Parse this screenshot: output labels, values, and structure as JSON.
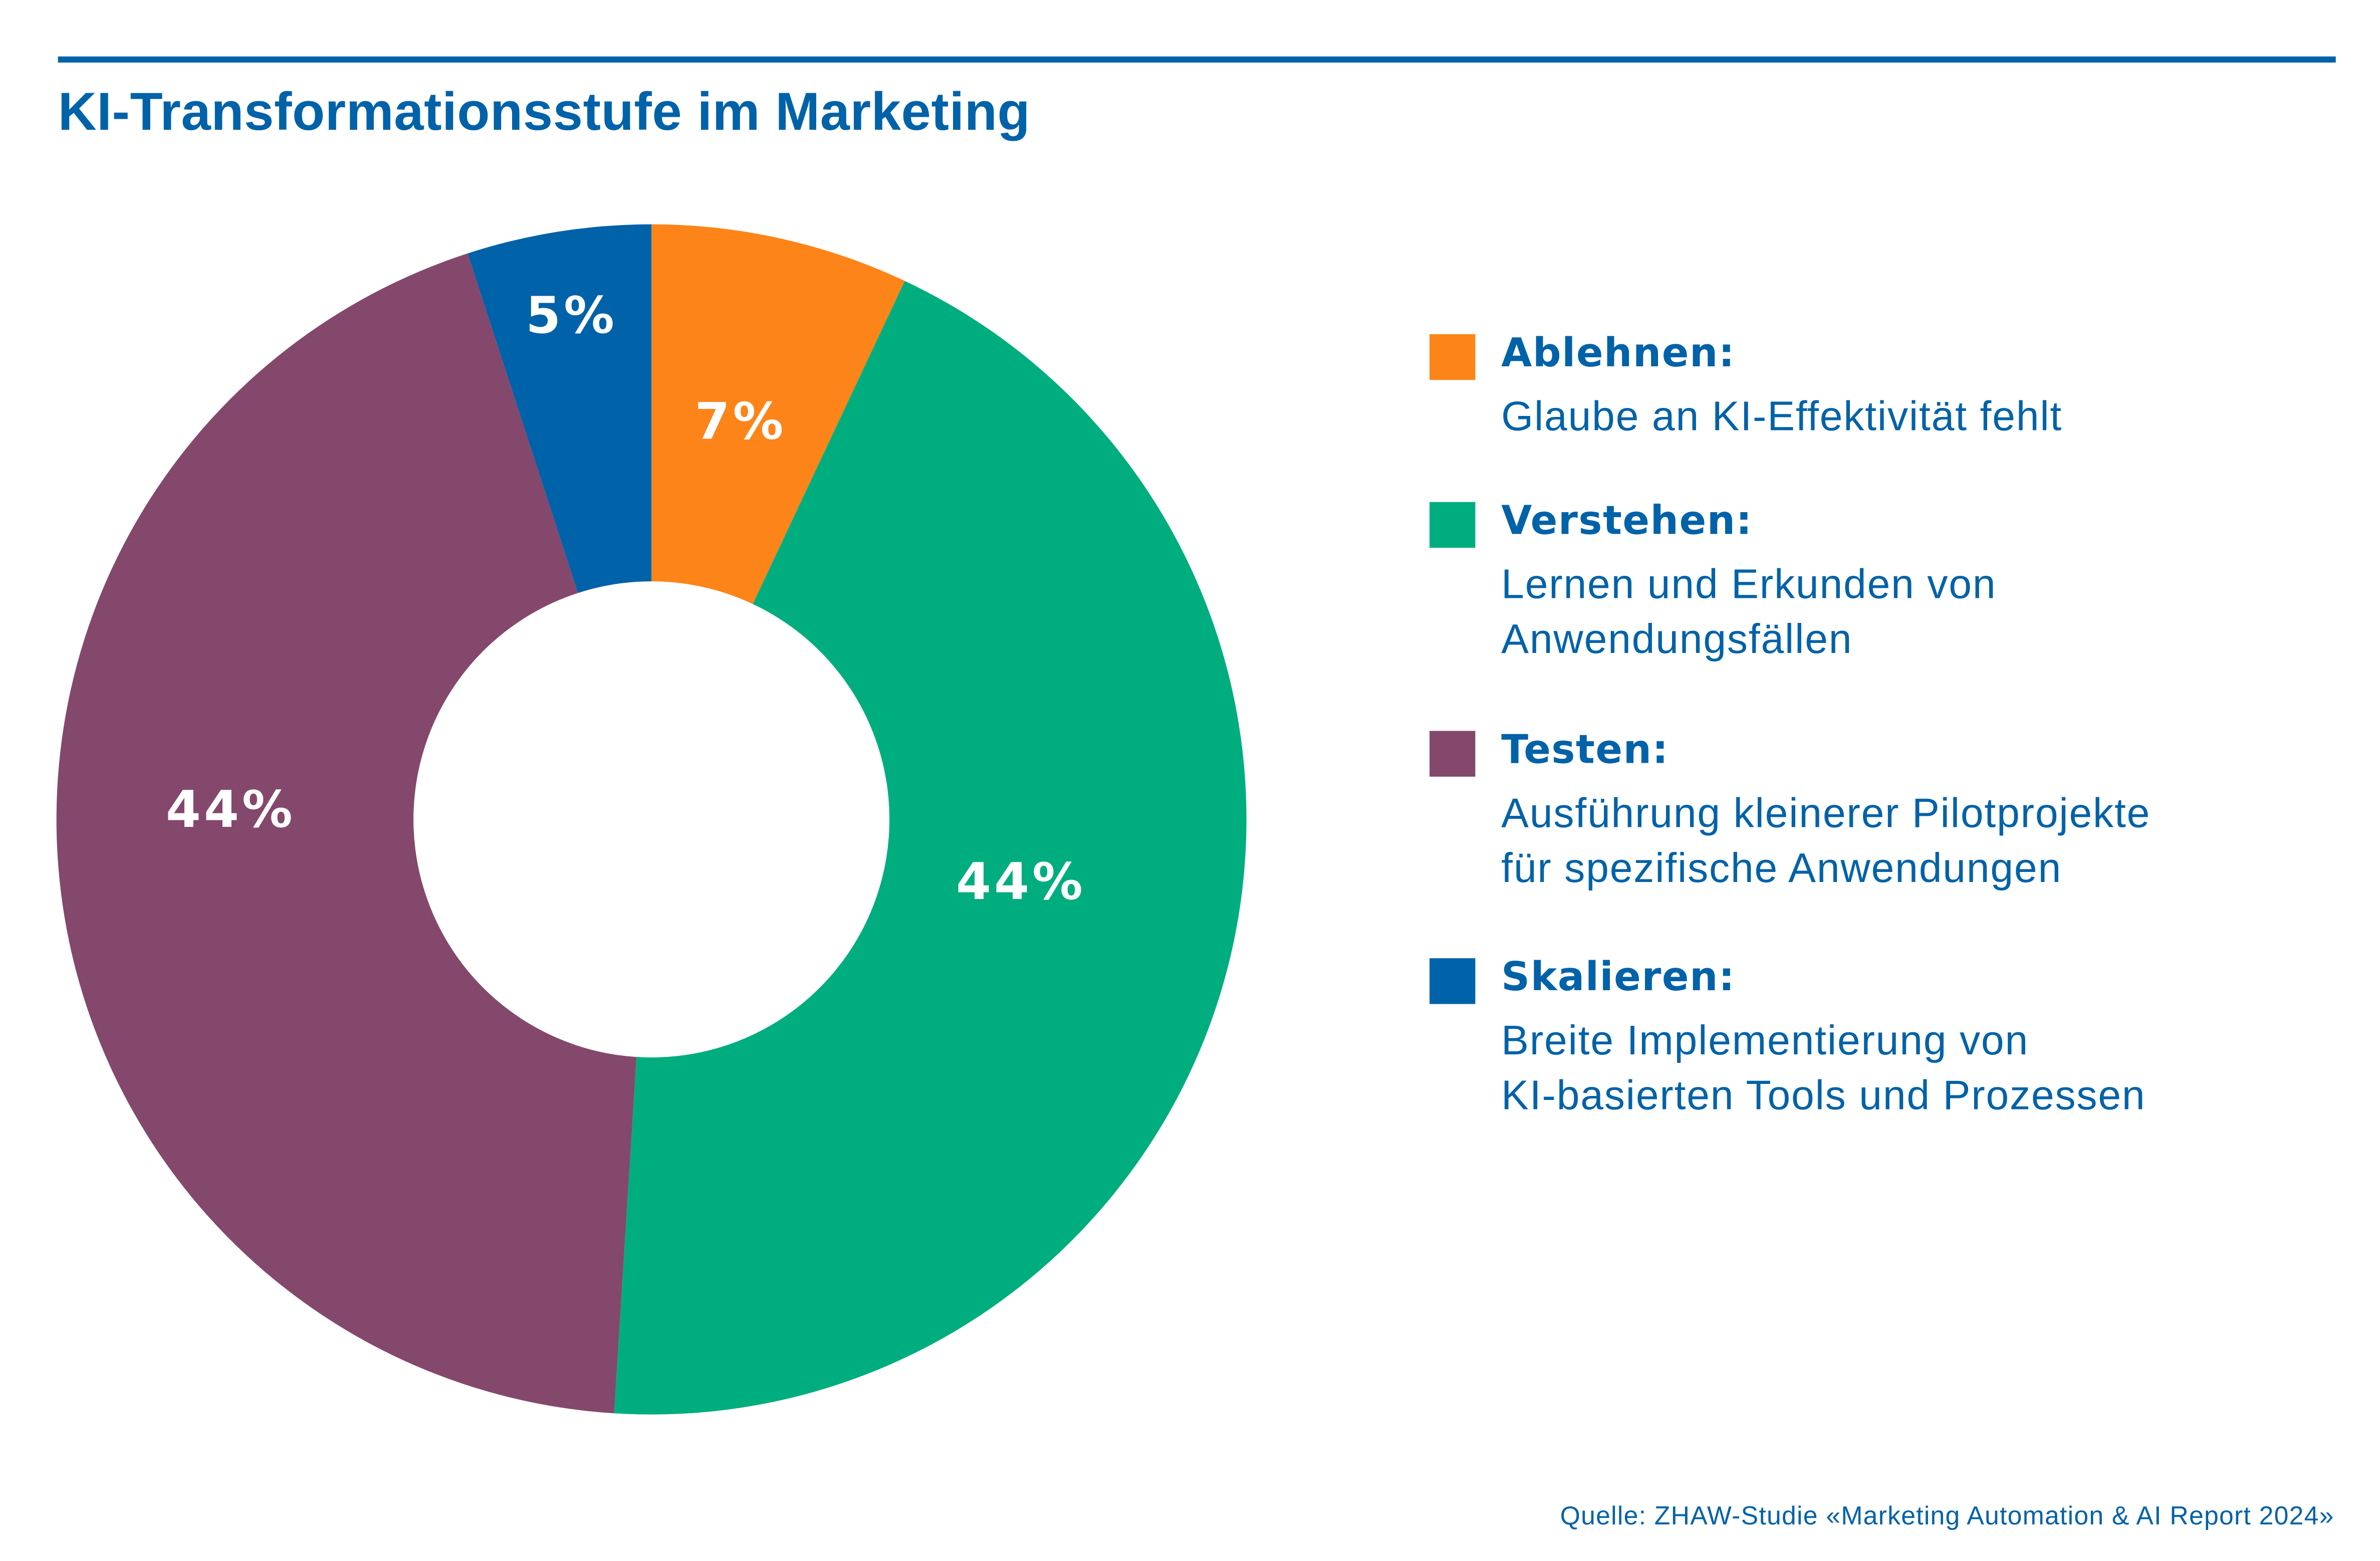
{
  "title": "KI-Transformationsstufe im Marketing",
  "source": "Quelle: ZHAW-Studie «Marketing Automation & AI Report 2024»",
  "chart_data": {
    "type": "pie",
    "donut": true,
    "title": "KI-Transformationsstufe im Marketing",
    "legend_placement": "right",
    "start": "top, clockwise",
    "slices": [
      {
        "name": "Ablehnen:",
        "description": [
          "Glaube an KI-Effektivität fehlt"
        ],
        "value": 7,
        "label": "7%",
        "color": "#fd8418"
      },
      {
        "name": "Verstehen:",
        "description": [
          "Lernen und Erkunden von",
          "Anwendungsfällen"
        ],
        "value": 44,
        "label": "44%",
        "color": "#00ad7e"
      },
      {
        "name": "Testen:",
        "description": [
          "Ausführung kleinerer Pilotprojekte",
          "für spezifische Anwendungen"
        ],
        "value": 44,
        "label": "44%",
        "color": "#84486c"
      },
      {
        "name": "Skalieren:",
        "description": [
          "Breite Implementierung von",
          "KI-basierten Tools und Prozessen"
        ],
        "value": 5,
        "label": "5%",
        "color": "#0062a8"
      }
    ]
  }
}
